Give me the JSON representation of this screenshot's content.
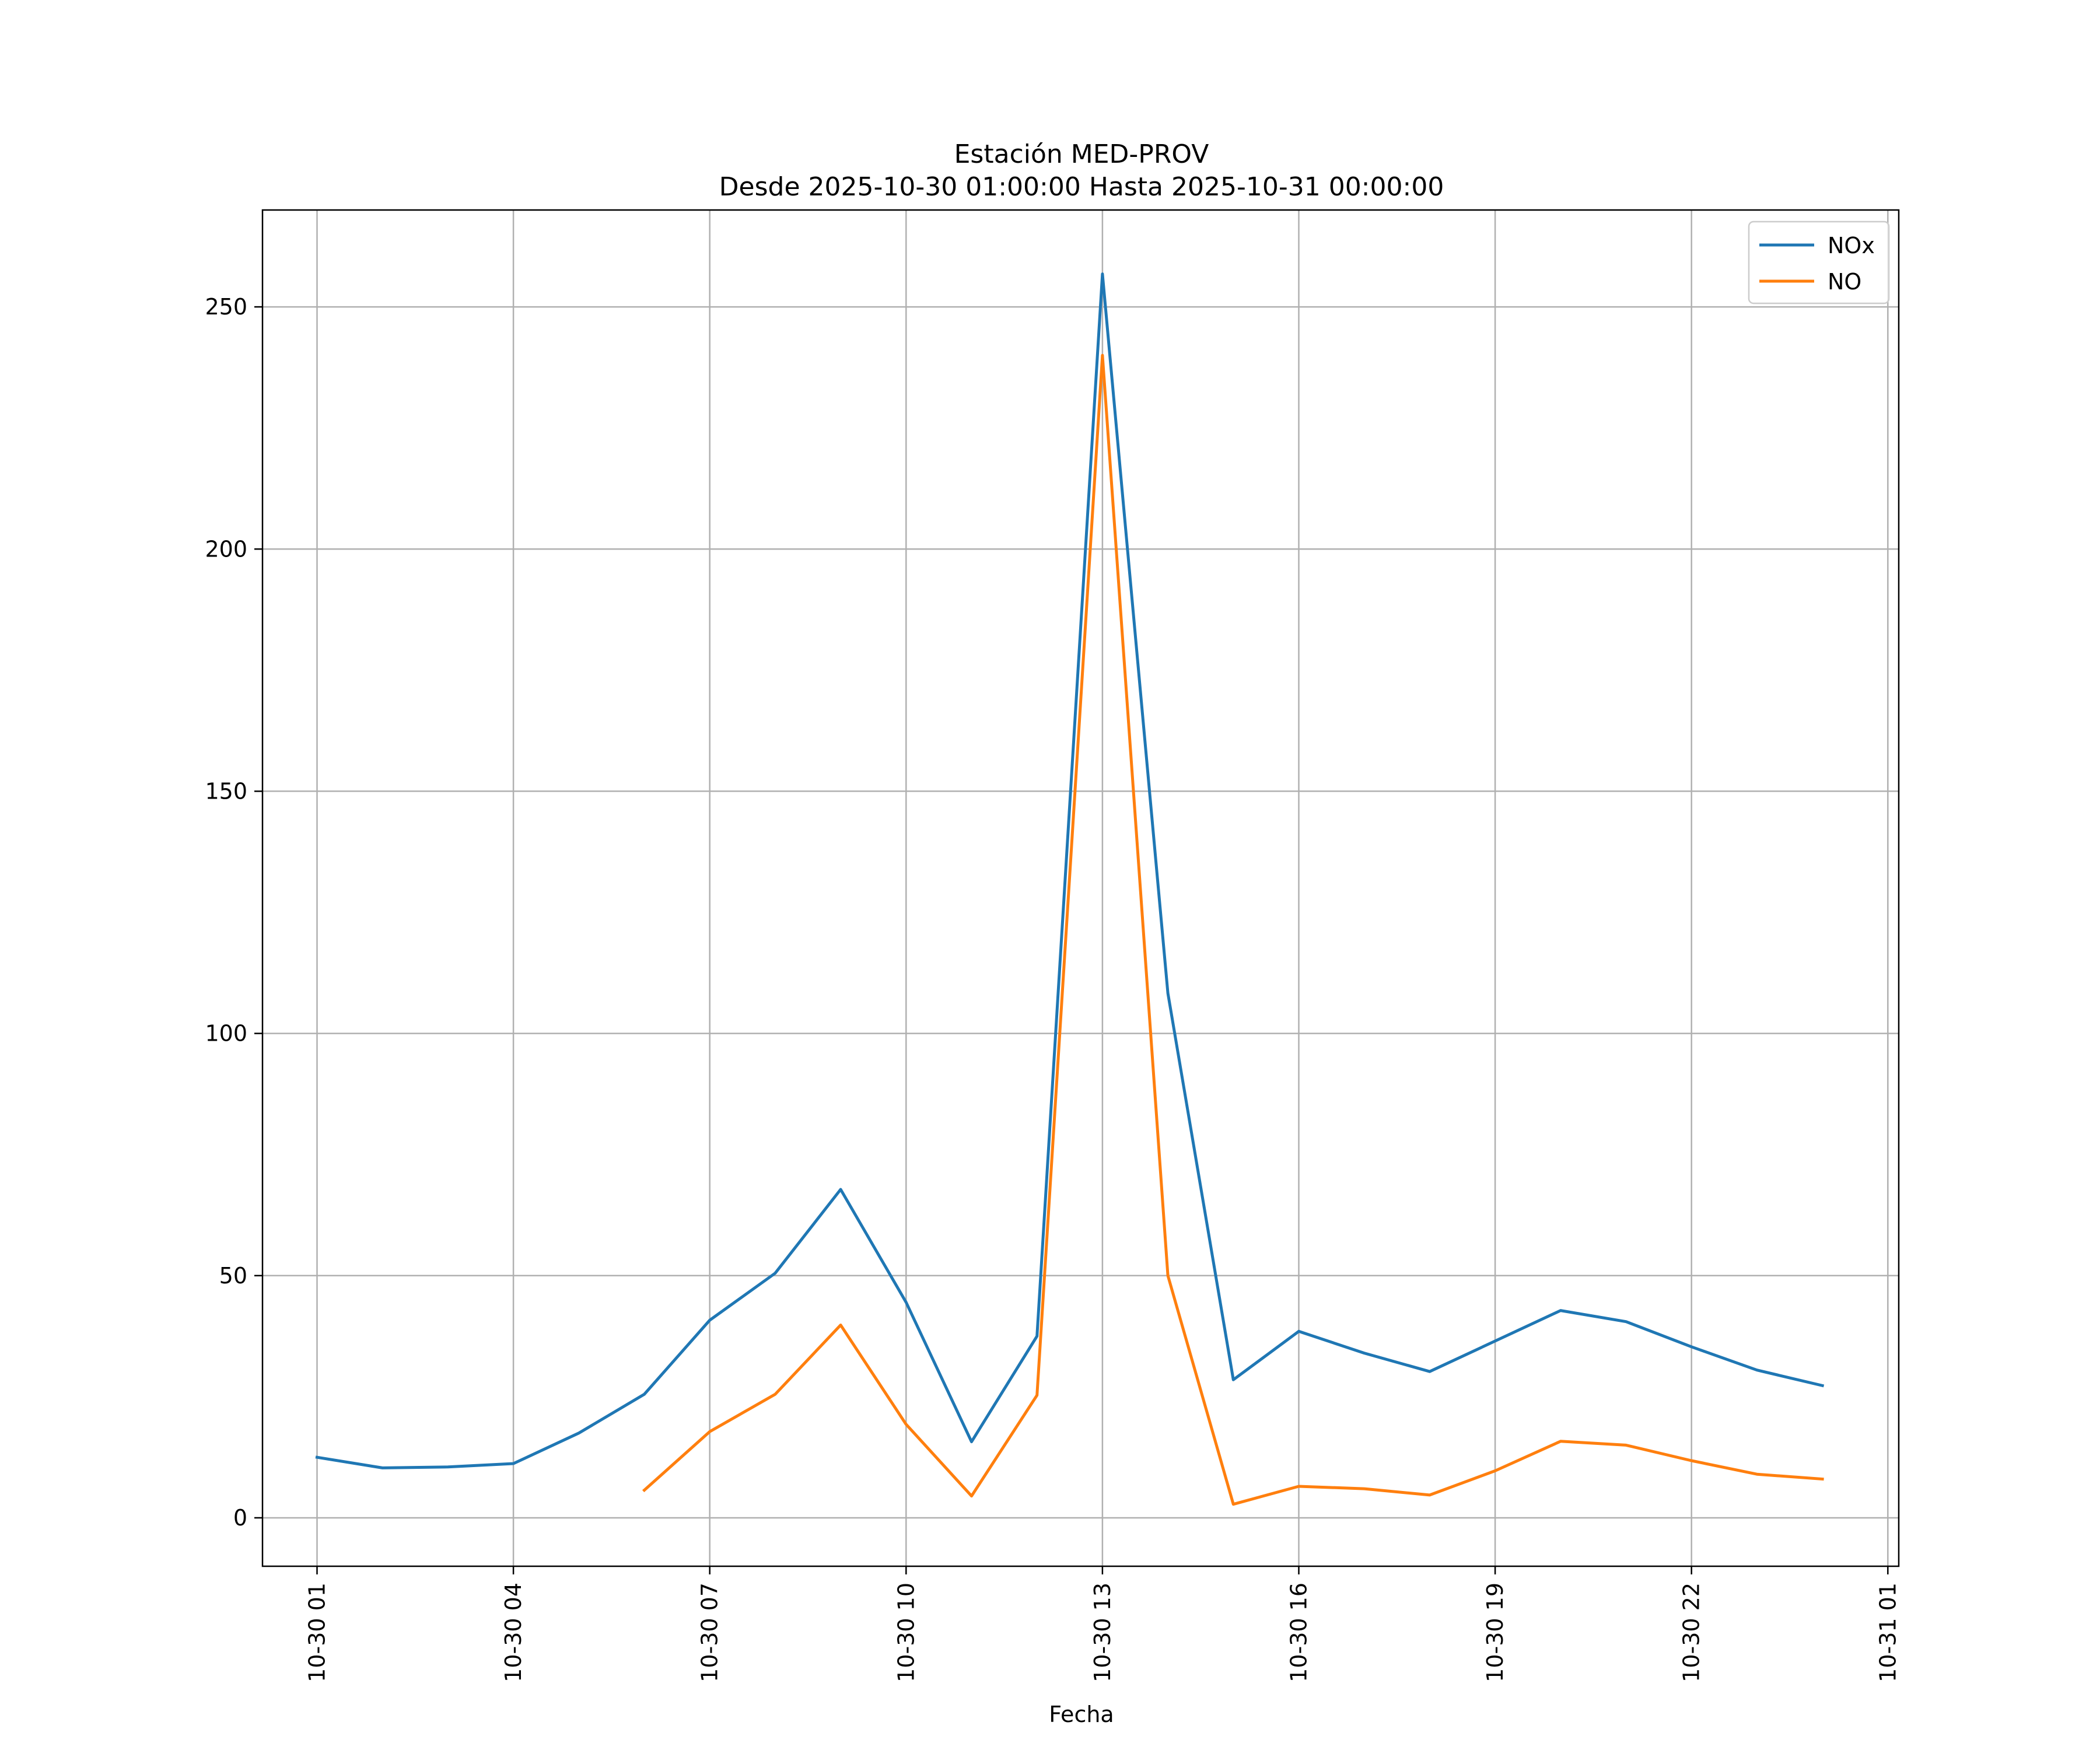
{
  "chart_data": {
    "type": "line",
    "title": "Estación MED-PROV",
    "subtitle": "Desde 2025-10-30 01:00:00 Hasta 2025-10-31 00:00:00",
    "xlabel": "Fecha",
    "ylabel": "",
    "x": [
      "2025-10-30 01:00",
      "2025-10-30 02:00",
      "2025-10-30 03:00",
      "2025-10-30 04:00",
      "2025-10-30 05:00",
      "2025-10-30 06:00",
      "2025-10-30 07:00",
      "2025-10-30 08:00",
      "2025-10-30 09:00",
      "2025-10-30 10:00",
      "2025-10-30 11:00",
      "2025-10-30 12:00",
      "2025-10-30 13:00",
      "2025-10-30 14:00",
      "2025-10-30 15:00",
      "2025-10-30 16:00",
      "2025-10-30 17:00",
      "2025-10-30 18:00",
      "2025-10-30 19:00",
      "2025-10-30 20:00",
      "2025-10-30 21:00",
      "2025-10-30 22:00",
      "2025-10-30 23:00",
      "2025-10-31 00:00"
    ],
    "x_ticks": [
      "10-30 01",
      "10-30 04",
      "10-30 07",
      "10-30 10",
      "10-30 13",
      "10-30 16",
      "10-30 19",
      "10-30 22",
      "10-31 01"
    ],
    "y_ticks": [
      0,
      50,
      100,
      150,
      200,
      250
    ],
    "ylim": [
      -10,
      270
    ],
    "xlim": [
      "2025-10-30 00:10",
      "2025-10-31 01:10"
    ],
    "grid": true,
    "legend_position": "upper right",
    "series": [
      {
        "name": "NOx",
        "color": "#1f77b4",
        "values": [
          12.5,
          10.3,
          10.5,
          11.2,
          17.5,
          25.5,
          40.8,
          50.5,
          67.8,
          44.5,
          15.7,
          37.5,
          256.8,
          108.3,
          28.5,
          38.5,
          34.0,
          30.2,
          36.5,
          42.8,
          40.5,
          35.3,
          30.5,
          27.3
        ]
      },
      {
        "name": "NO",
        "color": "#ff7f0e",
        "values": [
          null,
          null,
          null,
          null,
          null,
          5.7,
          17.8,
          25.5,
          39.8,
          19.3,
          4.5,
          25.3,
          240.0,
          50.0,
          2.8,
          6.5,
          6.0,
          4.7,
          9.7,
          15.8,
          15.0,
          11.8,
          9.0,
          8.0
        ]
      }
    ]
  }
}
